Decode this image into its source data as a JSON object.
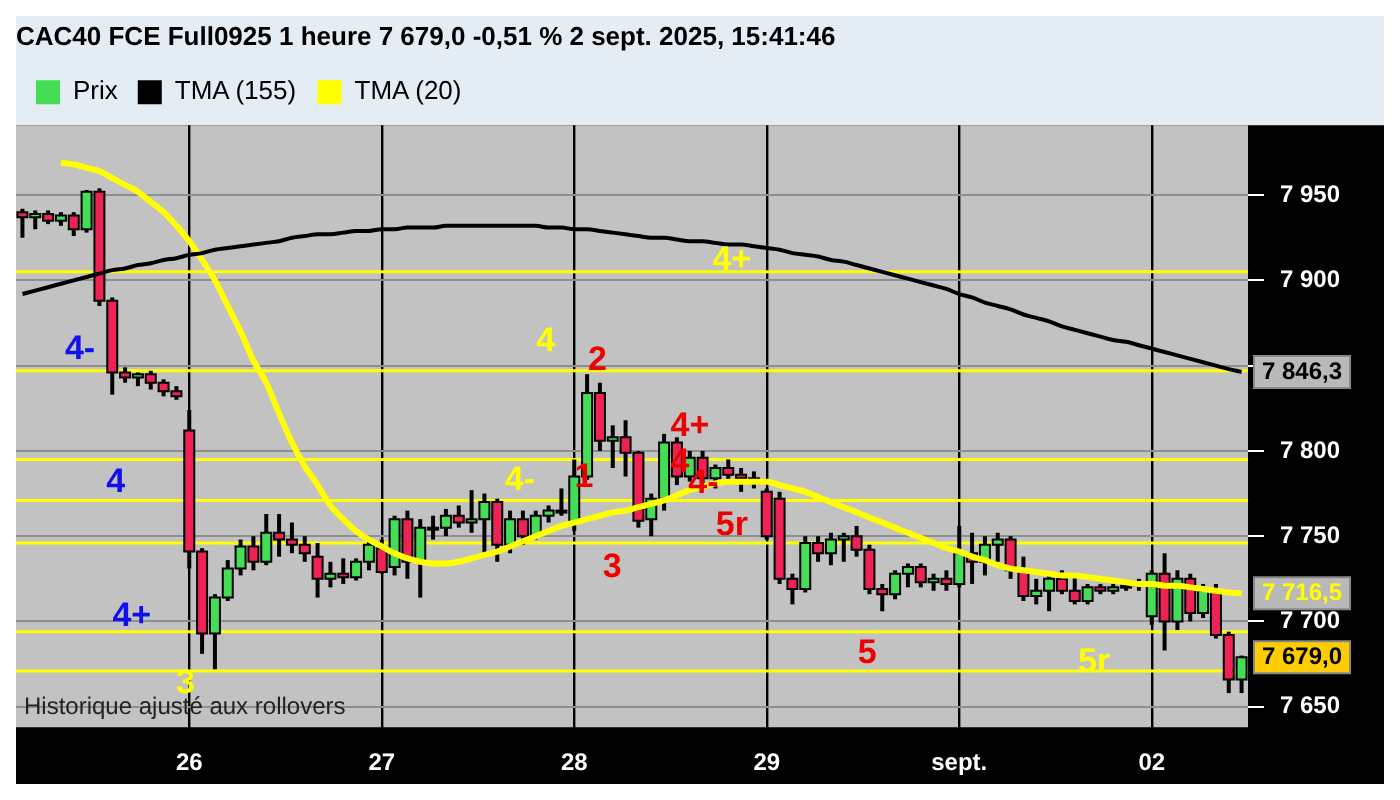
{
  "chart_data": {
    "type": "candlestick",
    "title": "CAC40 FCE Full0925 1 heure 7 679,0 -0,51 % 2 sept. 2025, 15:41:46",
    "legend": "top left",
    "grid": true,
    "categories": [
      null,
      null,
      null,
      null,
      null,
      null,
      null,
      null,
      null,
      null,
      null,
      null,
      null,
      "26",
      null,
      null,
      null,
      null,
      null,
      null,
      null,
      null,
      null,
      null,
      null,
      null,
      null,
      null,
      "27",
      null,
      null,
      null,
      null,
      null,
      null,
      null,
      null,
      null,
      null,
      null,
      null,
      null,
      null,
      "28",
      null,
      null,
      null,
      null,
      null,
      null,
      null,
      null,
      null,
      null,
      null,
      null,
      null,
      null,
      "29",
      null,
      null,
      null,
      null,
      null,
      null,
      null,
      null,
      null,
      null,
      null,
      null,
      null,
      null,
      "sept.",
      null,
      null,
      null,
      null,
      null,
      null,
      null,
      null,
      null,
      null,
      null,
      null,
      null,
      null,
      "02",
      null,
      null,
      null,
      null,
      null,
      null,
      null
    ],
    "ylim": [
      7638,
      7991
    ],
    "yticks": [
      {
        "value": 7650,
        "label": "7 650"
      },
      {
        "value": 7700,
        "label": "7 700"
      },
      {
        "value": 7750,
        "label": "7 750"
      },
      {
        "value": 7800,
        "label": "7 800"
      },
      {
        "value": 7850,
        "label": null
      },
      {
        "value": 7900,
        "label": "7 900"
      },
      {
        "value": 7950,
        "label": "7 950"
      }
    ],
    "series": [
      {
        "name": "Prix",
        "ohlc": [
          [
            7940,
            7942,
            7925,
            7937
          ],
          [
            7937,
            7941,
            7930,
            7939
          ],
          [
            7939,
            7941,
            7933,
            7935
          ],
          [
            7935,
            7940,
            7932,
            7938
          ],
          [
            7938,
            7940,
            7926,
            7930
          ],
          [
            7930,
            7953,
            7928,
            7952
          ],
          [
            7952,
            7954,
            7885,
            7888
          ],
          [
            7888,
            7890,
            7833,
            7846
          ],
          [
            7846,
            7849,
            7840,
            7843
          ],
          [
            7843,
            7846,
            7838,
            7845
          ],
          [
            7845,
            7847,
            7836,
            7840
          ],
          [
            7840,
            7842,
            7832,
            7835
          ],
          [
            7835,
            7838,
            7830,
            7832
          ],
          [
            7812,
            7824,
            7731,
            7741
          ],
          [
            7741,
            7743,
            7681,
            7693
          ],
          [
            7693,
            7716,
            7672,
            7714
          ],
          [
            7714,
            7736,
            7712,
            7731
          ],
          [
            7731,
            7748,
            7727,
            7744
          ],
          [
            7744,
            7750,
            7730,
            7735
          ],
          [
            7735,
            7763,
            7733,
            7752
          ],
          [
            7752,
            7763,
            7738,
            7748
          ],
          [
            7748,
            7758,
            7740,
            7745
          ],
          [
            7745,
            7750,
            7735,
            7740
          ],
          [
            7738,
            7746,
            7714,
            7725
          ],
          [
            7725,
            7735,
            7720,
            7728
          ],
          [
            7728,
            7737,
            7722,
            7726
          ],
          [
            7726,
            7737,
            7724,
            7735
          ],
          [
            7735,
            7748,
            7730,
            7745
          ],
          [
            7743,
            7748,
            7728,
            7729
          ],
          [
            7732,
            7762,
            7727,
            7760
          ],
          [
            7760,
            7765,
            7725,
            7735
          ],
          [
            7735,
            7760,
            7714,
            7755
          ],
          [
            7755,
            7762,
            7748,
            7755
          ],
          [
            7755,
            7766,
            7750,
            7762
          ],
          [
            7762,
            7768,
            7755,
            7758
          ],
          [
            7758,
            7777,
            7752,
            7760
          ],
          [
            7760,
            7775,
            7740,
            7770
          ],
          [
            7770,
            7772,
            7735,
            7745
          ],
          [
            7745,
            7765,
            7740,
            7760
          ],
          [
            7760,
            7765,
            7745,
            7750
          ],
          [
            7750,
            7765,
            7748,
            7762
          ],
          [
            7762,
            7768,
            7758,
            7765
          ],
          [
            7765,
            7778,
            7762,
            7765
          ],
          [
            7758,
            7795,
            7753,
            7785
          ],
          [
            7785,
            7845,
            7783,
            7834
          ],
          [
            7834,
            7840,
            7800,
            7806
          ],
          [
            7806,
            7815,
            7790,
            7808
          ],
          [
            7808,
            7818,
            7785,
            7799
          ],
          [
            7799,
            7800,
            7755,
            7759
          ],
          [
            7760,
            7775,
            7750,
            7772
          ],
          [
            7772,
            7810,
            7765,
            7805
          ],
          [
            7805,
            7808,
            7780,
            7785
          ],
          [
            7785,
            7800,
            7782,
            7796
          ],
          [
            7796,
            7800,
            7780,
            7784
          ],
          [
            7784,
            7792,
            7778,
            7790
          ],
          [
            7790,
            7795,
            7783,
            7786
          ],
          [
            7786,
            7790,
            7776,
            7784
          ],
          [
            7784,
            7788,
            7778,
            7781
          ],
          [
            7776,
            7778,
            7748,
            7750
          ],
          [
            7772,
            7776,
            7722,
            7725
          ],
          [
            7725,
            7728,
            7710,
            7719
          ],
          [
            7719,
            7750,
            7717,
            7746
          ],
          [
            7746,
            7750,
            7735,
            7740
          ],
          [
            7740,
            7752,
            7733,
            7748
          ],
          [
            7748,
            7752,
            7735,
            7750
          ],
          [
            7750,
            7756,
            7738,
            7742
          ],
          [
            7742,
            7745,
            7716,
            7719
          ],
          [
            7719,
            7722,
            7706,
            7716
          ],
          [
            7716,
            7730,
            7713,
            7728
          ],
          [
            7728,
            7734,
            7720,
            7732
          ],
          [
            7732,
            7734,
            7720,
            7723
          ],
          [
            7723,
            7728,
            7718,
            7725
          ],
          [
            7725,
            7730,
            7718,
            7722
          ],
          [
            7722,
            7756,
            7720,
            7740
          ],
          [
            7740,
            7752,
            7722,
            7735
          ],
          [
            7735,
            7750,
            7727,
            7745
          ],
          [
            7745,
            7752,
            7735,
            7748
          ],
          [
            7748,
            7750,
            7725,
            7730
          ],
          [
            7730,
            7738,
            7712,
            7715
          ],
          [
            7715,
            7725,
            7710,
            7718
          ],
          [
            7718,
            7728,
            7706,
            7725
          ],
          [
            7725,
            7730,
            7716,
            7718
          ],
          [
            7718,
            7728,
            7710,
            7712
          ],
          [
            7712,
            7722,
            7710,
            7720
          ],
          [
            7720,
            7722,
            7716,
            7718
          ],
          [
            7718,
            7722,
            7716,
            7720
          ],
          [
            7720,
            7722,
            7718,
            7721
          ],
          [
            7721,
            7725,
            7718,
            7723
          ],
          [
            7703,
            7730,
            7698,
            7728
          ],
          [
            7728,
            7740,
            7683,
            7700
          ],
          [
            7700,
            7730,
            7695,
            7725
          ],
          [
            7725,
            7728,
            7700,
            7705
          ],
          [
            7705,
            7722,
            7702,
            7718
          ],
          [
            7718,
            7722,
            7690,
            7692
          ],
          [
            7692,
            7694,
            7658,
            7666
          ],
          [
            7666,
            7680,
            7658,
            7679
          ]
        ],
        "value_labels": [
          null,
          null,
          null,
          null,
          null,
          null,
          null,
          null,
          null,
          null,
          null,
          null,
          null,
          null,
          null,
          null,
          null,
          null,
          null,
          null,
          null,
          null,
          null,
          null,
          null,
          null,
          null,
          null,
          null,
          null,
          null,
          null,
          null,
          null,
          null,
          null,
          null,
          null,
          null,
          null,
          null,
          null,
          null,
          null,
          null,
          null,
          null,
          null,
          null,
          null,
          null,
          null,
          null,
          null,
          null,
          null,
          null,
          null,
          null,
          null,
          null,
          null,
          null,
          null,
          null,
          null,
          null,
          null,
          null,
          null,
          null,
          null,
          null,
          null,
          null,
          null,
          null,
          null,
          null,
          null,
          null,
          null,
          null,
          null,
          null,
          null,
          null,
          null,
          null,
          null,
          null,
          null,
          null,
          null,
          null,
          "7 679,0"
        ]
      },
      {
        "name": "TMA (155)",
        "type": "line",
        "color": "#000000",
        "values": [
          7892,
          7894,
          7896,
          7898,
          7900,
          7902,
          7904,
          7906,
          7907,
          7909,
          7910,
          7912,
          7913,
          7915,
          7916,
          7918,
          7919,
          7920,
          7921,
          7922,
          7923,
          7925,
          7926,
          7927,
          7927,
          7928,
          7929,
          7929,
          7930,
          7930,
          7931,
          7931,
          7931,
          7932,
          7932,
          7932,
          7932,
          7932,
          7932,
          7932,
          7932,
          7931,
          7931,
          7930,
          7930,
          7929,
          7928,
          7927,
          7926,
          7925,
          7925,
          7924,
          7923,
          7923,
          7922,
          7921,
          7921,
          7920,
          7919,
          7918,
          7916,
          7915,
          7914,
          7912,
          7911,
          7909,
          7907,
          7905,
          7903,
          7901,
          7899,
          7897,
          7895,
          7892,
          7890,
          7887,
          7885,
          7883,
          7880,
          7878,
          7876,
          7873,
          7871,
          7869,
          7867,
          7865,
          7864,
          7862,
          7860,
          7858,
          7856,
          7854,
          7852,
          7850,
          7848,
          7846.3
        ],
        "value_labels": [
          null,
          null,
          null,
          null,
          null,
          null,
          null,
          null,
          null,
          null,
          null,
          null,
          null,
          null,
          null,
          null,
          null,
          null,
          null,
          null,
          null,
          null,
          null,
          null,
          null,
          null,
          null,
          null,
          null,
          null,
          null,
          null,
          null,
          null,
          null,
          null,
          null,
          null,
          null,
          null,
          null,
          null,
          null,
          null,
          null,
          null,
          null,
          null,
          null,
          null,
          null,
          null,
          null,
          null,
          null,
          null,
          null,
          null,
          null,
          null,
          null,
          null,
          null,
          null,
          null,
          null,
          null,
          null,
          null,
          null,
          null,
          null,
          null,
          null,
          null,
          null,
          null,
          null,
          null,
          null,
          null,
          null,
          null,
          null,
          null,
          null,
          null,
          null,
          null,
          null,
          null,
          null,
          null,
          null,
          null,
          "7 846,3"
        ]
      },
      {
        "name": "TMA (20)",
        "type": "line",
        "color": "#ffff00",
        "values": [
          null,
          null,
          null,
          7969,
          7968,
          7966,
          7964,
          7960,
          7956,
          7952,
          7946,
          7940,
          7932,
          7923,
          7912,
          7900,
          7885,
          7870,
          7853,
          7840,
          7822,
          7805,
          7791,
          7780,
          7768,
          7760,
          7753,
          7748,
          7744,
          7740,
          7737,
          7735,
          7734,
          7734,
          7735,
          7737,
          7739,
          7741,
          7744,
          7747,
          7750,
          7753,
          7756,
          7758,
          7760,
          7762,
          7764,
          7765,
          7767,
          7769,
          7771,
          7774,
          7777,
          7779,
          7781,
          7782,
          7782,
          7782,
          7782,
          7780,
          7778,
          7776,
          7773,
          7770,
          7767,
          7764,
          7761,
          7758,
          7755,
          7752,
          7749,
          7746,
          7743,
          7741,
          7738,
          7736,
          7733,
          7731,
          7730,
          7729,
          7728,
          7727,
          7727,
          7726,
          7725,
          7724,
          7723,
          7722,
          7722,
          7721,
          7721,
          7720,
          7719,
          7718,
          7717,
          7716.5
        ],
        "value_labels": [
          null,
          null,
          null,
          null,
          null,
          null,
          null,
          null,
          null,
          null,
          null,
          null,
          null,
          null,
          null,
          null,
          null,
          null,
          null,
          null,
          null,
          null,
          null,
          null,
          null,
          null,
          null,
          null,
          null,
          null,
          null,
          null,
          null,
          null,
          null,
          null,
          null,
          null,
          null,
          null,
          null,
          null,
          null,
          null,
          null,
          null,
          null,
          null,
          null,
          null,
          null,
          null,
          null,
          null,
          null,
          null,
          null,
          null,
          null,
          null,
          null,
          null,
          null,
          null,
          null,
          null,
          null,
          null,
          null,
          null,
          null,
          null,
          null,
          null,
          null,
          null,
          null,
          null,
          null,
          null,
          null,
          null,
          null,
          null,
          null,
          null,
          null,
          null,
          null,
          null,
          null,
          null,
          null,
          null,
          null,
          "7 716,5"
        ]
      }
    ],
    "ref_lines": [
      {
        "axis": "y",
        "value": 7905,
        "color": "#ffff00"
      },
      {
        "axis": "y",
        "value": 7847,
        "color": "#ffff00"
      },
      {
        "axis": "y",
        "value": 7795,
        "color": "#ffff00"
      },
      {
        "axis": "y",
        "value": 7771,
        "color": "#ffff00"
      },
      {
        "axis": "y",
        "value": 7746,
        "color": "#ffff00"
      },
      {
        "axis": "y",
        "value": 7694,
        "color": "#ffff00"
      },
      {
        "axis": "y",
        "value": 7671,
        "color": "#ffff00"
      }
    ],
    "annotations": [
      "4-",
      "4",
      "4+",
      "3",
      "4",
      "4-",
      "4+",
      "5r",
      "2",
      "1",
      "3",
      "4+",
      "4",
      "4-",
      "5r",
      "5",
      "Historique ajusté aux rollovers"
    ]
  }
}
